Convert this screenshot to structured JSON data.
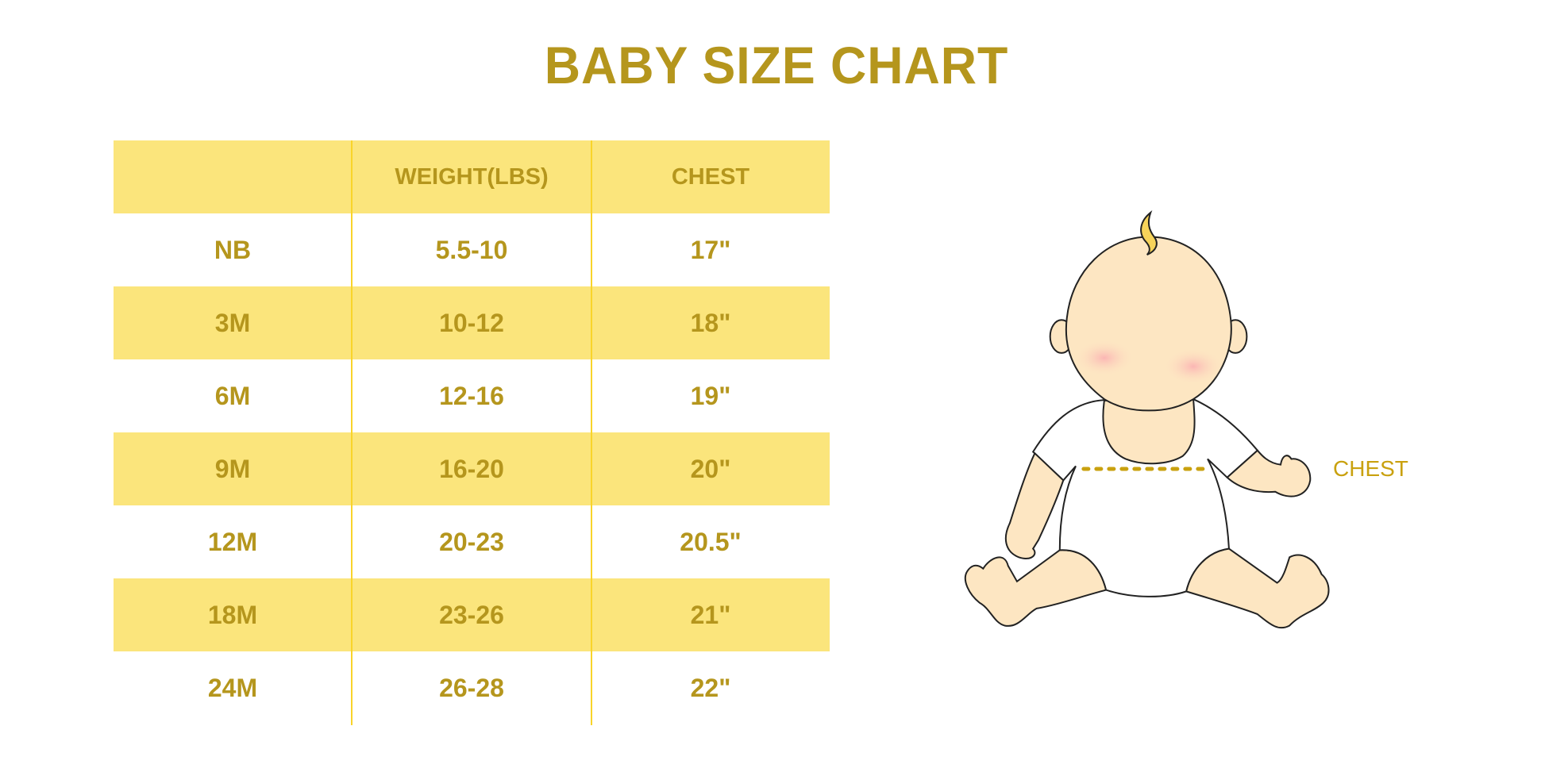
{
  "title": "BABY SIZE CHART",
  "table": {
    "headers": [
      "",
      "WEIGHT(LBS)",
      "CHEST"
    ],
    "rows": [
      {
        "size": "NB",
        "weight": "5.5-10",
        "chest": "17\""
      },
      {
        "size": "3M",
        "weight": "10-12",
        "chest": "18\""
      },
      {
        "size": "6M",
        "weight": "12-16",
        "chest": "19\""
      },
      {
        "size": "9M",
        "weight": "16-20",
        "chest": "20\""
      },
      {
        "size": "12M",
        "weight": "20-23",
        "chest": "20.5\""
      },
      {
        "size": "18M",
        "weight": "23-26",
        "chest": "21\""
      },
      {
        "size": "24M",
        "weight": "26-28",
        "chest": "22\""
      }
    ]
  },
  "illustration": {
    "chest_label": "CHEST"
  },
  "colors": {
    "text": "#b5961d",
    "row_shade": "#fbe57c",
    "divider": "#f9d42a",
    "skin": "#fde6c2"
  }
}
